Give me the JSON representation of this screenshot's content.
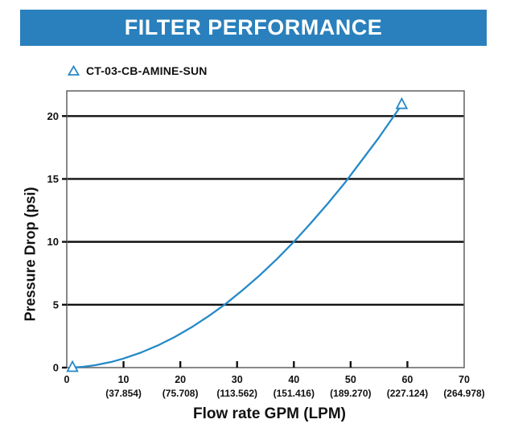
{
  "title_bar": {
    "text": "FILTER PERFORMANCE",
    "bg_color": "#2A80BC",
    "text_color": "#FFFFFF"
  },
  "legend": {
    "series_label": "CT-03-CB-AMINE-SUN",
    "marker": "open-triangle-icon",
    "marker_color": "#2589C8"
  },
  "chart_data": {
    "type": "line",
    "title": "FILTER PERFORMANCE",
    "xlabel": "Flow rate GPM (LPM)",
    "ylabel": "Pressure Drop (psi)",
    "xlim": [
      0,
      70
    ],
    "ylim": [
      0,
      22
    ],
    "grid": "horizontal-black-lines-at-yticks",
    "legend_position": "top-left",
    "axis_border_color": "#6A6A6A",
    "grid_color": "#111111",
    "xticks": [
      {
        "gpm": "0",
        "lpm": ""
      },
      {
        "gpm": "10",
        "lpm": "(37.854)"
      },
      {
        "gpm": "20",
        "lpm": "(75.708)"
      },
      {
        "gpm": "30",
        "lpm": "(113.562)"
      },
      {
        "gpm": "40",
        "lpm": "(151.416)"
      },
      {
        "gpm": "50",
        "lpm": "(189.270)"
      },
      {
        "gpm": "60",
        "lpm": "(227.124)"
      },
      {
        "gpm": "70",
        "lpm": "(264.978)"
      }
    ],
    "yticks": [
      0,
      5,
      10,
      15,
      20
    ],
    "series": [
      {
        "name": "CT-03-CB-AMINE-SUN",
        "color": "#2589C8",
        "marker": "open-triangle",
        "points_gpm_psi": [
          [
            1,
            0
          ],
          [
            3,
            0.07
          ],
          [
            5,
            0.19
          ],
          [
            8,
            0.47
          ],
          [
            10,
            0.72
          ],
          [
            13,
            1.18
          ],
          [
            16,
            1.75
          ],
          [
            19,
            2.43
          ],
          [
            22,
            3.21
          ],
          [
            25,
            4.1
          ],
          [
            28,
            5.07
          ],
          [
            31,
            6.17
          ],
          [
            34,
            7.34
          ],
          [
            37,
            8.62
          ],
          [
            40,
            10
          ],
          [
            43,
            11.5
          ],
          [
            46,
            13.05
          ],
          [
            49,
            14.7
          ],
          [
            52,
            16.5
          ],
          [
            55,
            18.3
          ],
          [
            57,
            19.6
          ],
          [
            59,
            20.9
          ]
        ],
        "endpoint_markers_gpm_psi": [
          [
            1,
            0
          ],
          [
            59,
            20.9
          ]
        ]
      }
    ]
  }
}
